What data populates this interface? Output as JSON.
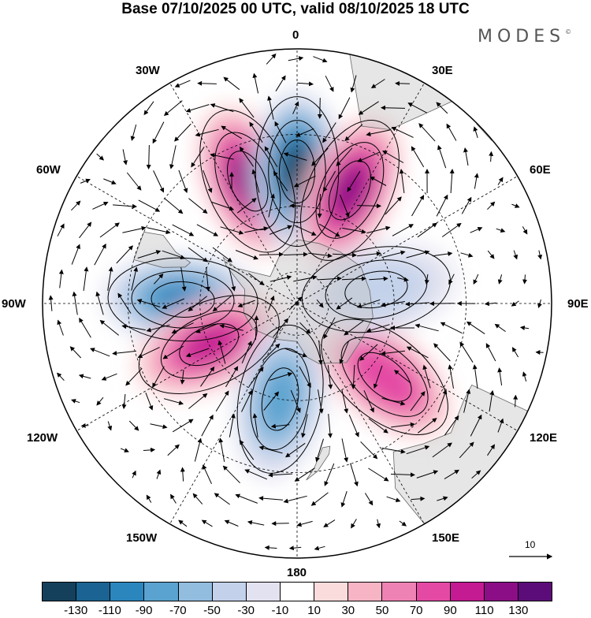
{
  "title": "Base 07/10/2025 00 UTC, valid 08/10/2025 18 UTC",
  "logo": {
    "text": "MODES",
    "mark": "©"
  },
  "longitude_labels": {
    "top": "0",
    "bottom": "180",
    "left": "90W",
    "right": "90E",
    "upper_left": "30W",
    "upper_right": "30E",
    "mid_left": "60W",
    "mid_right": "60E",
    "lower_left": "120W",
    "lower_right": "120E",
    "bottom_left": "150W",
    "bottom_right": "150E"
  },
  "vector_reference": {
    "label": "10"
  },
  "colorbar": {
    "labels": [
      "-130",
      "-110",
      "-90",
      "-70",
      "-50",
      "-30",
      "-10",
      "10",
      "30",
      "50",
      "70",
      "90",
      "110",
      "130"
    ],
    "colors": [
      "#14405c",
      "#1a6392",
      "#2b86be",
      "#5aa3d0",
      "#92bddf",
      "#c3d2ea",
      "#e2e2f0",
      "#ffffff",
      "#fbdcdc",
      "#f6b4c4",
      "#ef82b4",
      "#e44aa4",
      "#c41a92",
      "#8c0e86",
      "#5c0c78"
    ]
  },
  "chart_data": {
    "type": "heatmap",
    "projection": "south polar stereographic",
    "title": "Base 07/10/2025 00 UTC, valid 08/10/2025 18 UTC",
    "field": "geopotential height anomaly with wind vectors",
    "anomaly_centers": [
      {
        "sign": "positive",
        "lon": -22,
        "lat": -50,
        "value": 120
      },
      {
        "sign": "negative",
        "lon": 0,
        "lat": -50,
        "value": -130
      },
      {
        "sign": "positive",
        "lon": 25,
        "lat": -52,
        "value": 120
      },
      {
        "sign": "negative",
        "lon": -88,
        "lat": -55,
        "value": -100
      },
      {
        "sign": "positive",
        "lon": -115,
        "lat": -60,
        "value": 100
      },
      {
        "sign": "negative",
        "lon": -170,
        "lat": -60,
        "value": -80
      },
      {
        "sign": "positive",
        "lon": 130,
        "lat": -55,
        "value": 90
      },
      {
        "sign": "negative",
        "lon": 80,
        "lat": -65,
        "value": -40
      }
    ],
    "colorbar_levels": [
      -130,
      -110,
      -90,
      -70,
      -50,
      -30,
      -10,
      10,
      30,
      50,
      70,
      90,
      110,
      130
    ]
  }
}
